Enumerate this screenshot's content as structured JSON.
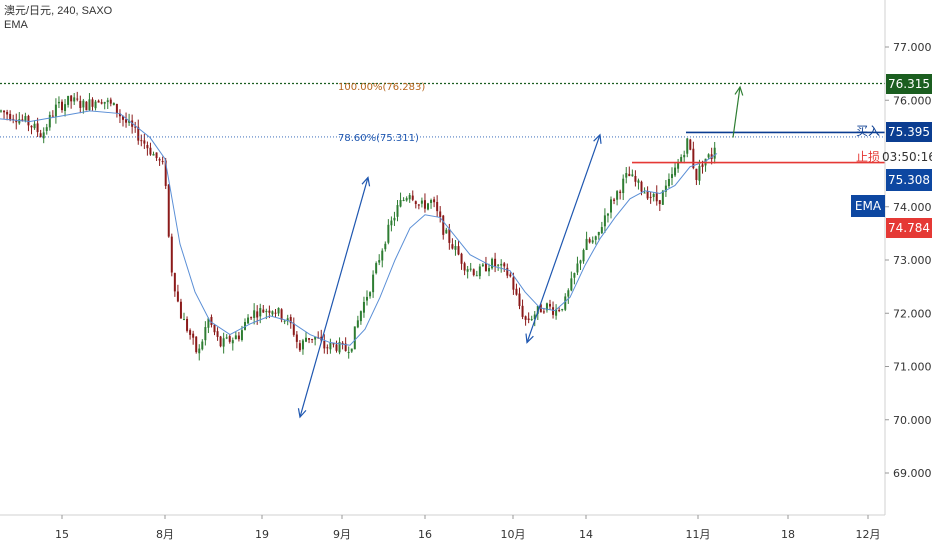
{
  "header": {
    "symbol": "澳元/日元",
    "interval": "240",
    "source": "SAXO",
    "indicator": "EMA"
  },
  "colors": {
    "candle_up": "#2e7d32",
    "candle_down": "#8b1a1a",
    "ema": "#5b8fd6",
    "target": "#1b5e20",
    "entry": "#0b3d91",
    "stop": "#e53935",
    "current": "#0d47a1",
    "arrow_blue": "#1f57b0",
    "arrow_green": "#2e7d32",
    "fib_100": "#b5651d",
    "fib_786": "#1f57b0"
  },
  "levels": {
    "target": {
      "price": 76.315,
      "label": "76.315"
    },
    "entry": {
      "price": 75.395,
      "label": "75.395",
      "tag": "买入"
    },
    "stop": {
      "price": 74.784,
      "label": "74.784",
      "tag": "止损"
    },
    "current": {
      "price": 75.308,
      "label": "75.308",
      "countdown": "03:50:16"
    },
    "ema_badge": "EMA"
  },
  "fib": {
    "fib_100": {
      "price": 76.283,
      "label": "100.00%(76.283)"
    },
    "fib_786": {
      "price": 75.311,
      "label": "78.60%(75.311)"
    }
  },
  "chart_data": {
    "type": "candlestick",
    "title": "",
    "y_axis": {
      "ticks": [
        "77.000",
        "76.000",
        "75.000",
        "74.000",
        "73.000",
        "72.000",
        "71.000",
        "70.000",
        "69.000"
      ],
      "ylim": [
        68.6,
        77.9
      ]
    },
    "x_axis": {
      "ticks": [
        "15",
        "8月",
        "19",
        "9月",
        "16",
        "10月",
        "14",
        "11月",
        "18",
        "12月"
      ]
    },
    "close_path": [
      [
        0,
        75.8
      ],
      [
        15,
        75.7
      ],
      [
        30,
        75.55
      ],
      [
        42,
        75.35
      ],
      [
        55,
        75.85
      ],
      [
        70,
        76.0
      ],
      [
        85,
        75.9
      ],
      [
        100,
        76.05
      ],
      [
        115,
        75.85
      ],
      [
        125,
        75.6
      ],
      [
        140,
        75.3
      ],
      [
        155,
        74.95
      ],
      [
        165,
        74.7
      ],
      [
        170,
        73.0
      ],
      [
        180,
        72.0
      ],
      [
        190,
        71.6
      ],
      [
        198,
        71.2
      ],
      [
        208,
        71.9
      ],
      [
        220,
        71.4
      ],
      [
        230,
        71.5
      ],
      [
        240,
        71.6
      ],
      [
        250,
        72.0
      ],
      [
        262,
        72.05
      ],
      [
        272,
        72.1
      ],
      [
        282,
        71.95
      ],
      [
        292,
        71.75
      ],
      [
        300,
        71.3
      ],
      [
        305,
        71.55
      ],
      [
        315,
        71.55
      ],
      [
        325,
        71.35
      ],
      [
        335,
        71.4
      ],
      [
        345,
        71.3
      ],
      [
        352,
        71.45
      ],
      [
        360,
        72.0
      ],
      [
        372,
        72.6
      ],
      [
        385,
        73.4
      ],
      [
        398,
        74.0
      ],
      [
        410,
        74.3
      ],
      [
        420,
        74.0
      ],
      [
        432,
        74.1
      ],
      [
        445,
        73.5
      ],
      [
        455,
        73.2
      ],
      [
        465,
        72.9
      ],
      [
        478,
        72.75
      ],
      [
        490,
        72.95
      ],
      [
        500,
        72.85
      ],
      [
        510,
        72.7
      ],
      [
        518,
        72.2
      ],
      [
        526,
        71.85
      ],
      [
        535,
        72.0
      ],
      [
        545,
        72.15
      ],
      [
        555,
        72.05
      ],
      [
        565,
        72.2
      ],
      [
        575,
        72.75
      ],
      [
        585,
        73.3
      ],
      [
        596,
        73.35
      ],
      [
        606,
        73.9
      ],
      [
        618,
        74.3
      ],
      [
        628,
        74.6
      ],
      [
        638,
        74.4
      ],
      [
        648,
        74.25
      ],
      [
        658,
        74.1
      ],
      [
        668,
        74.4
      ],
      [
        678,
        74.8
      ],
      [
        688,
        75.25
      ],
      [
        696,
        74.55
      ],
      [
        704,
        74.9
      ],
      [
        712,
        74.95
      ],
      [
        717,
        75.35
      ]
    ],
    "ema_path": [
      [
        0,
        75.65
      ],
      [
        30,
        75.6
      ],
      [
        60,
        75.7
      ],
      [
        90,
        75.8
      ],
      [
        120,
        75.75
      ],
      [
        150,
        75.3
      ],
      [
        165,
        74.9
      ],
      [
        180,
        73.3
      ],
      [
        195,
        72.4
      ],
      [
        210,
        71.85
      ],
      [
        230,
        71.6
      ],
      [
        250,
        71.8
      ],
      [
        270,
        71.95
      ],
      [
        290,
        71.85
      ],
      [
        310,
        71.6
      ],
      [
        330,
        71.45
      ],
      [
        350,
        71.4
      ],
      [
        365,
        71.7
      ],
      [
        380,
        72.3
      ],
      [
        395,
        73.0
      ],
      [
        410,
        73.6
      ],
      [
        425,
        73.85
      ],
      [
        440,
        73.8
      ],
      [
        455,
        73.45
      ],
      [
        470,
        73.1
      ],
      [
        490,
        72.9
      ],
      [
        510,
        72.8
      ],
      [
        525,
        72.4
      ],
      [
        540,
        72.1
      ],
      [
        555,
        72.05
      ],
      [
        570,
        72.3
      ],
      [
        585,
        72.9
      ],
      [
        600,
        73.4
      ],
      [
        615,
        73.8
      ],
      [
        630,
        74.15
      ],
      [
        645,
        74.3
      ],
      [
        660,
        74.25
      ],
      [
        675,
        74.4
      ],
      [
        690,
        74.75
      ],
      [
        705,
        74.85
      ],
      [
        717,
        75.0
      ]
    ],
    "annotations": {
      "arrows": [
        {
          "from": [
            300,
            70.05
          ],
          "to": [
            368,
            74.55
          ],
          "color": "arrow_blue",
          "style": "double"
        },
        {
          "from": [
            527,
            71.45
          ],
          "to": [
            600,
            75.35
          ],
          "color": "arrow_blue",
          "style": "double"
        },
        {
          "from": [
            733,
            75.3
          ],
          "to": [
            740,
            76.25
          ],
          "color": "arrow_green",
          "style": "single"
        }
      ]
    }
  }
}
